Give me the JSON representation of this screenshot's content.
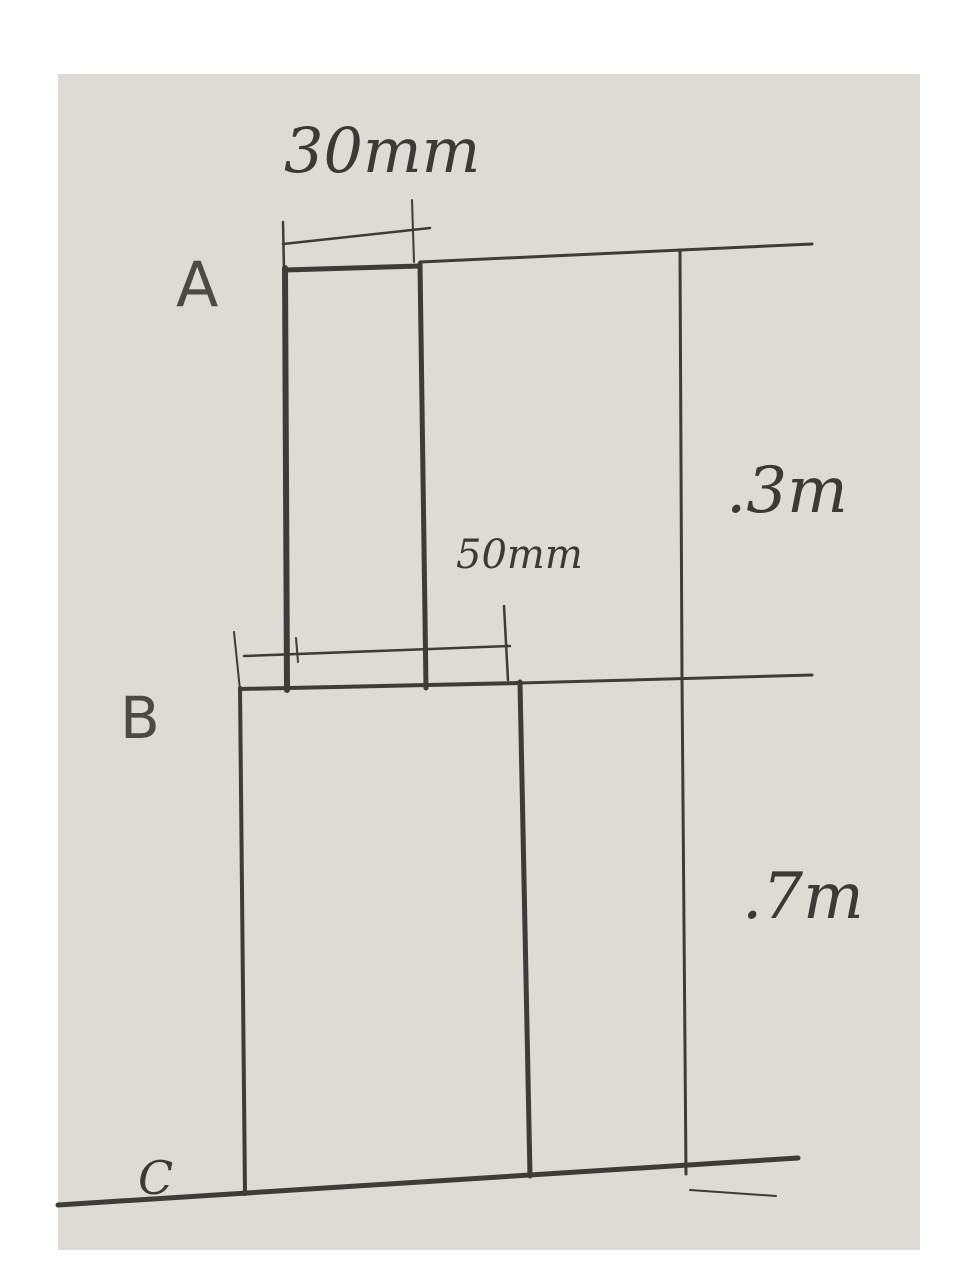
{
  "labels": {
    "point_a": "A",
    "point_b": "B",
    "point_c": "C"
  },
  "dimensions": {
    "upper_width": "30mm",
    "lower_width": "50mm",
    "upper_length": ".3m",
    "lower_length": ".7m"
  },
  "colors": {
    "paper": "#dedad4",
    "pencil": "#3c3c39",
    "page": "#ffffff"
  }
}
